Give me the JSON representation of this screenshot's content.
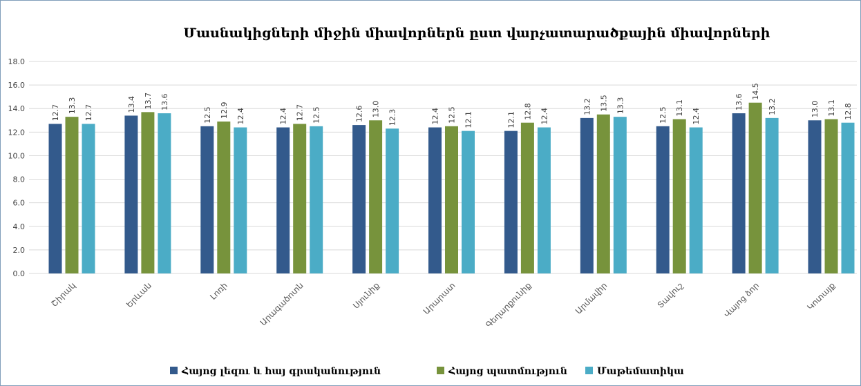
{
  "chart_data": {
    "type": "bar",
    "title": "Մասնակիցների միջին միավորներն ըստ վարչատարածքային միավորների",
    "categories": [
      "Շիրակ",
      "Երևան",
      "Լոռի",
      "Արագածոտն",
      "Սյունիք",
      "Արարատ",
      "Գեղարքունիք",
      "Արմավիր",
      "Տավուշ",
      "Վայոց ձոր",
      "Կոտայք"
    ],
    "series": [
      {
        "name": "Հայոց լեզու և հայ գրականություն",
        "color": "#335a8c",
        "values": [
          12.7,
          13.4,
          12.5,
          12.4,
          12.6,
          12.4,
          12.1,
          13.2,
          12.5,
          13.6,
          13.0
        ],
        "value_labels": [
          "12.7",
          "13.4",
          "12.5",
          "12.4",
          "12.6",
          "12.4",
          "12.1",
          "13.2",
          "12.5",
          "13.6",
          "13.0"
        ]
      },
      {
        "name": "Հայոց պատմություն",
        "color": "#77933c",
        "values": [
          13.3,
          13.7,
          12.9,
          12.7,
          13.0,
          12.5,
          12.8,
          13.5,
          13.1,
          14.5,
          13.1
        ],
        "value_labels": [
          "13.3",
          "13.7",
          "12.9",
          "12.7",
          "13.0",
          "12.5",
          "12.8",
          "13.5",
          "13.1",
          "14.5",
          "13.1"
        ]
      },
      {
        "name": "Մաթեմատիկա",
        "color": "#4bacc6",
        "values": [
          12.7,
          13.6,
          12.4,
          12.5,
          12.3,
          12.1,
          12.4,
          13.3,
          12.4,
          13.2,
          12.8
        ],
        "value_labels": [
          "12.7",
          "13.6",
          "12.4",
          "12.5",
          "12.3",
          "12.1",
          "12.4",
          "13.3",
          "12.4",
          "13.2",
          "12.8"
        ]
      }
    ],
    "ylim": [
      0,
      18
    ],
    "yticks": [
      {
        "value": 0,
        "label": "0.0"
      },
      {
        "value": 2,
        "label": "2.0"
      },
      {
        "value": 4,
        "label": "4.0"
      },
      {
        "value": 6,
        "label": "6.0"
      },
      {
        "value": 8,
        "label": "8.0"
      },
      {
        "value": 10,
        "label": "10.0"
      },
      {
        "value": 12,
        "label": "12.0"
      },
      {
        "value": 14,
        "label": "14.0"
      },
      {
        "value": 16,
        "label": "16.0"
      },
      {
        "value": 18,
        "label": "18.0"
      }
    ],
    "grid": true
  }
}
